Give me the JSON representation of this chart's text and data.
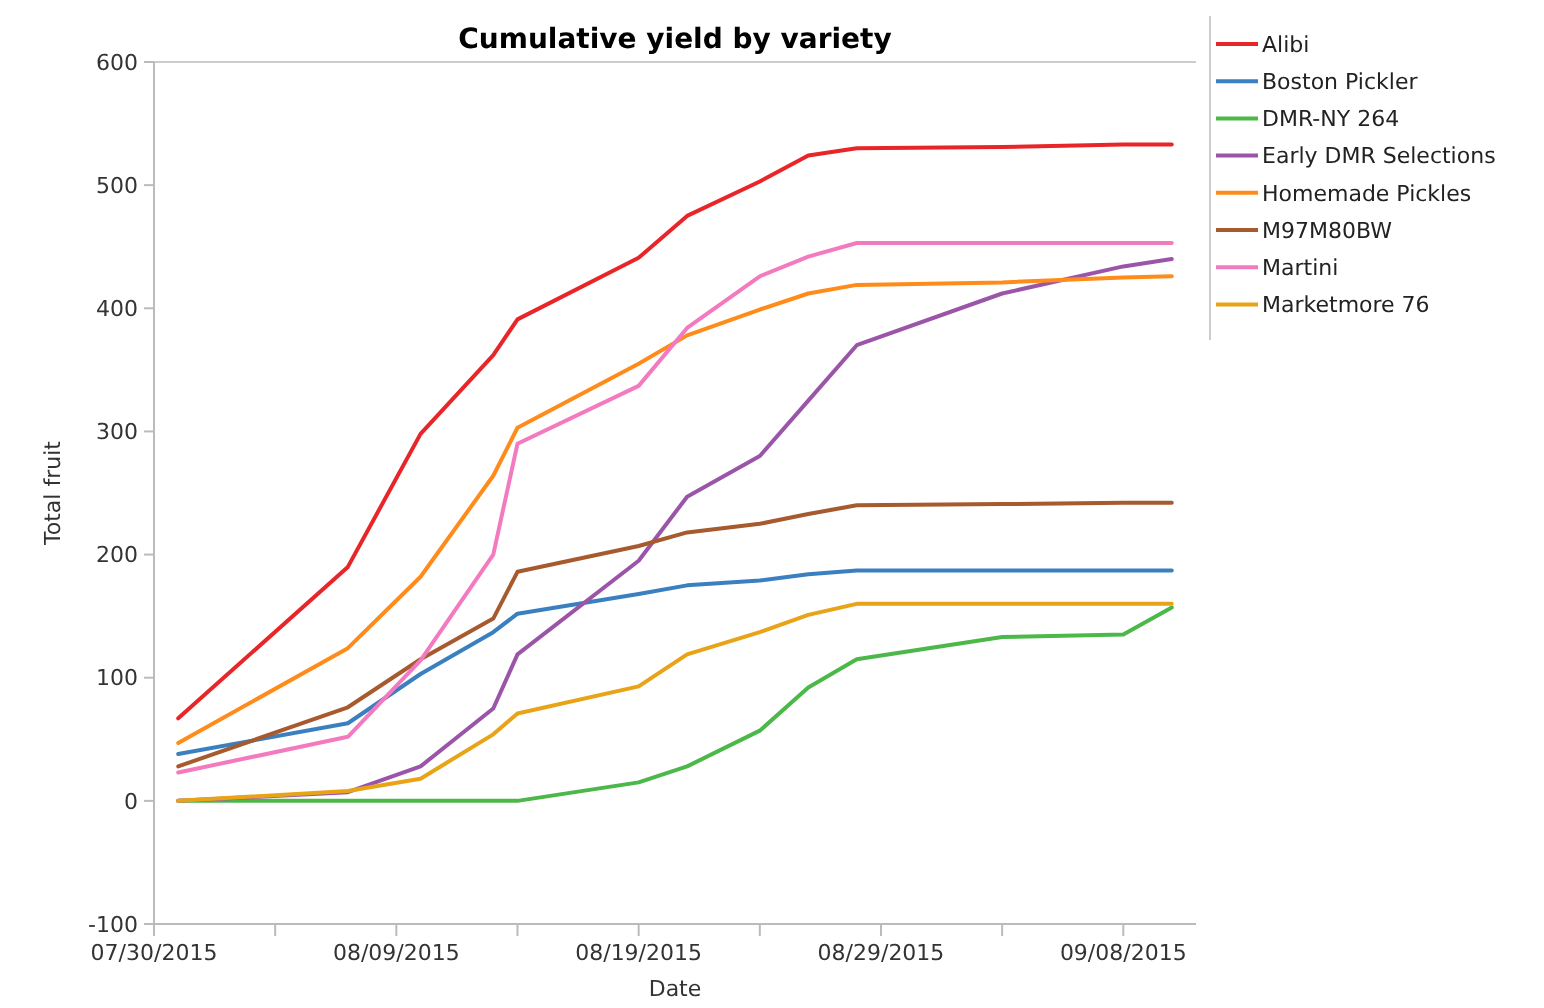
{
  "chart_data": {
    "type": "line",
    "title": "Cumulative yield by variety",
    "xlabel": "Date",
    "ylabel": "Total fruit",
    "x": [
      "2015-07-31",
      "2015-08-07",
      "2015-08-10",
      "2015-08-13",
      "2015-08-14",
      "2015-08-19",
      "2015-08-21",
      "2015-08-24",
      "2015-08-26",
      "2015-08-28",
      "2015-09-03",
      "2015-09-08",
      "2015-09-10"
    ],
    "series": [
      {
        "name": "Alibi",
        "color": "#e8262a",
        "values": [
          67,
          190,
          298,
          362,
          391,
          441,
          475,
          503,
          524,
          530,
          531,
          533,
          533
        ]
      },
      {
        "name": "Boston Pickler",
        "color": "#3a7fc0",
        "values": [
          38,
          63,
          103,
          137,
          152,
          168,
          175,
          179,
          184,
          187,
          187,
          187,
          187
        ]
      },
      {
        "name": "DMR-NY 264",
        "color": "#4cb849",
        "values": [
          0,
          0,
          0,
          0,
          0,
          15,
          28,
          57,
          92,
          115,
          133,
          135,
          157
        ]
      },
      {
        "name": "Early DMR Selections",
        "color": "#9b55a8",
        "values": [
          0,
          7,
          28,
          75,
          119,
          195,
          247,
          280,
          325,
          370,
          412,
          434,
          440
        ]
      },
      {
        "name": "Homemade Pickles",
        "color": "#ff8c1a",
        "values": [
          47,
          124,
          182,
          264,
          303,
          355,
          378,
          399,
          412,
          419,
          421,
          425,
          426
        ]
      },
      {
        "name": "M97M80BW",
        "color": "#a65a2e",
        "values": [
          28,
          76,
          115,
          148,
          186,
          207,
          218,
          225,
          233,
          240,
          241,
          242,
          242
        ]
      },
      {
        "name": "Martini",
        "color": "#f47ac0",
        "values": [
          23,
          52,
          114,
          200,
          290,
          337,
          384,
          426,
          442,
          453,
          453,
          453,
          453
        ]
      },
      {
        "name": "Marketmore 76",
        "color": "#e8a317",
        "values": [
          0,
          8,
          18,
          54,
          71,
          93,
          119,
          137,
          151,
          160,
          160,
          160,
          160
        ]
      }
    ],
    "xlim": [
      "2015-07-30",
      "2015-09-11"
    ],
    "xticks": [
      {
        "value": "2015-07-30",
        "label": "07/30/2015"
      },
      {
        "value": "2015-08-04",
        "label": null
      },
      {
        "value": "2015-08-09",
        "label": "08/09/2015"
      },
      {
        "value": "2015-08-14",
        "label": null
      },
      {
        "value": "2015-08-19",
        "label": "08/19/2015"
      },
      {
        "value": "2015-08-24",
        "label": null
      },
      {
        "value": "2015-08-29",
        "label": "08/29/2015"
      },
      {
        "value": "2015-09-03",
        "label": null
      },
      {
        "value": "2015-09-08",
        "label": "09/08/2015"
      }
    ],
    "ylim": [
      -100,
      600
    ],
    "yticks": [
      -100,
      0,
      100,
      200,
      300,
      400,
      500,
      600
    ],
    "grid": false,
    "legend": "right",
    "marker": "none",
    "line_style": "solid"
  }
}
